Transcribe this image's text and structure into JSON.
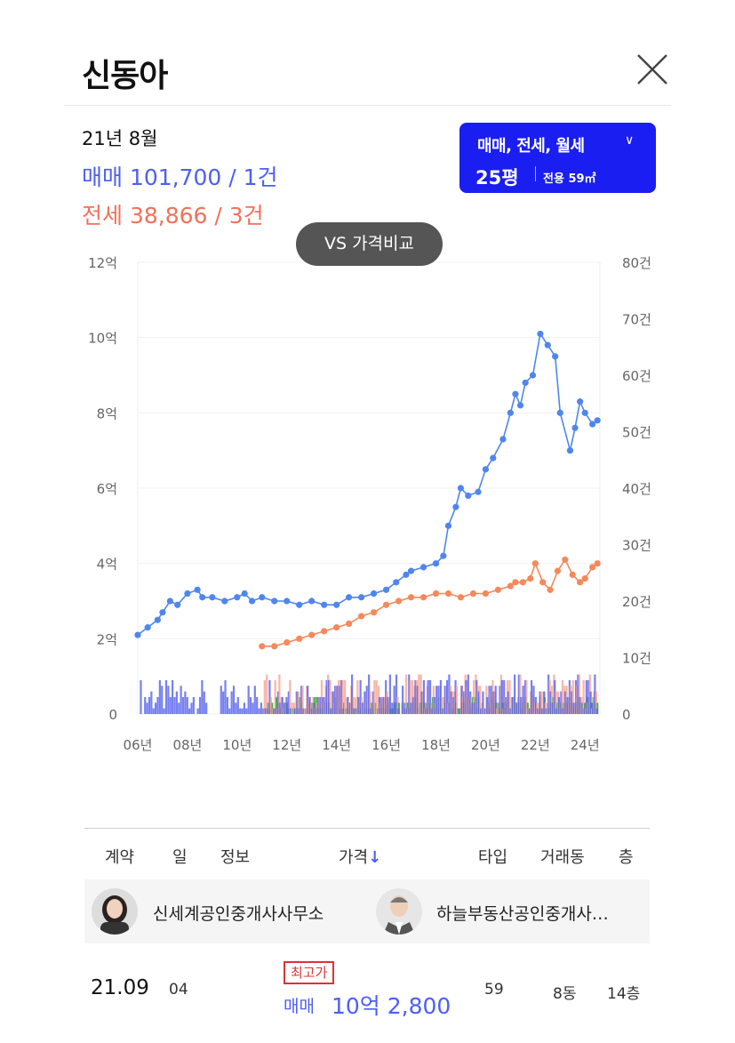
{
  "header": {
    "title": "신동아"
  },
  "summary": {
    "month": "21년 8월",
    "sale": "매매 101,700 / 1건",
    "jeonse": "전세 38,866 / 3건"
  },
  "filter": {
    "types": "매매, 전세, 월세",
    "size": "25평",
    "area": "전용 59㎡"
  },
  "compare_button": "VS 가격비교",
  "chart_data": {
    "type": "line",
    "left_axis": {
      "ticks": [
        "0",
        "2억",
        "4억",
        "6억",
        "8억",
        "10억",
        "12억"
      ],
      "range": [
        0,
        12
      ]
    },
    "right_axis": {
      "ticks": [
        "0",
        "10건",
        "20건",
        "30건",
        "40건",
        "50건",
        "60건",
        "70건",
        "80건"
      ],
      "range": [
        0,
        80
      ]
    },
    "x_ticks": [
      "06년",
      "08년",
      "10년",
      "12년",
      "14년",
      "16년",
      "18년",
      "20년",
      "22년",
      "24년"
    ],
    "x_range": [
      2006,
      2024.6
    ],
    "colors": {
      "sale": "#4f86ee",
      "jeonse": "#f4895b",
      "sale_bar": "#5561ee",
      "jeonse_bar": "#f7a99b",
      "monthly_bar": "#4caf50"
    },
    "series": [
      {
        "key": "sale",
        "x": [
          2006.0,
          2006.4,
          2006.8,
          2007.0,
          2007.3,
          2007.6,
          2008.0,
          2008.4,
          2008.6,
          2009.0,
          2009.5,
          2010.0,
          2010.3,
          2010.6,
          2011.0,
          2011.5,
          2012.0,
          2012.5,
          2013.0,
          2013.5,
          2014.0,
          2014.5,
          2015.0,
          2015.5,
          2016.0,
          2016.4,
          2016.8,
          2017.0,
          2017.5,
          2018.0,
          2018.3,
          2018.5,
          2018.8,
          2019.0,
          2019.3,
          2019.7,
          2020.0,
          2020.3,
          2020.7,
          2021.0,
          2021.2,
          2021.4,
          2021.6,
          2021.9,
          2022.2,
          2022.5,
          2022.8,
          2023.0,
          2023.4,
          2023.6,
          2023.8,
          2024.0,
          2024.3,
          2024.5
        ],
        "y": [
          2.1,
          2.3,
          2.5,
          2.7,
          3.0,
          2.9,
          3.2,
          3.3,
          3.1,
          3.1,
          3.0,
          3.1,
          3.2,
          3.0,
          3.1,
          3.0,
          3.0,
          2.9,
          3.0,
          2.9,
          2.9,
          3.1,
          3.1,
          3.2,
          3.3,
          3.5,
          3.7,
          3.8,
          3.9,
          4.0,
          4.2,
          5.0,
          5.5,
          6.0,
          5.8,
          5.9,
          6.5,
          6.8,
          7.3,
          8.0,
          8.5,
          8.2,
          8.8,
          9.0,
          10.1,
          9.8,
          9.5,
          8.0,
          7.0,
          7.6,
          8.3,
          8.0,
          7.7,
          7.8
        ]
      },
      {
        "key": "jeonse",
        "x": [
          2011.0,
          2011.5,
          2012.0,
          2012.5,
          2013.0,
          2013.5,
          2014.0,
          2014.5,
          2015.0,
          2015.5,
          2016.0,
          2016.5,
          2017.0,
          2017.5,
          2018.0,
          2018.5,
          2019.0,
          2019.5,
          2020.0,
          2020.5,
          2021.0,
          2021.2,
          2021.5,
          2021.8,
          2022.0,
          2022.3,
          2022.6,
          2022.9,
          2023.2,
          2023.5,
          2023.8,
          2024.0,
          2024.3,
          2024.5
        ],
        "y": [
          1.8,
          1.8,
          1.9,
          2.0,
          2.1,
          2.2,
          2.3,
          2.4,
          2.6,
          2.7,
          2.9,
          3.0,
          3.1,
          3.1,
          3.2,
          3.2,
          3.1,
          3.2,
          3.2,
          3.3,
          3.4,
          3.5,
          3.5,
          3.6,
          4.0,
          3.5,
          3.3,
          3.8,
          4.1,
          3.7,
          3.5,
          3.6,
          3.9,
          4.0
        ]
      }
    ]
  },
  "table": {
    "headers": [
      "계약",
      "일",
      "정보",
      "가격",
      "타입",
      "거래동",
      "층"
    ],
    "sort_arrow": "↓",
    "agents": [
      "신세계공인중개사사무소",
      "하늘부동산공인중개사…"
    ],
    "rows": [
      {
        "contract": "21.09",
        "day": "04",
        "badge": "최고가",
        "type_label": "매매",
        "price": "10억 2,800",
        "area": "59",
        "dong": "8동",
        "floor": "14층"
      }
    ]
  }
}
